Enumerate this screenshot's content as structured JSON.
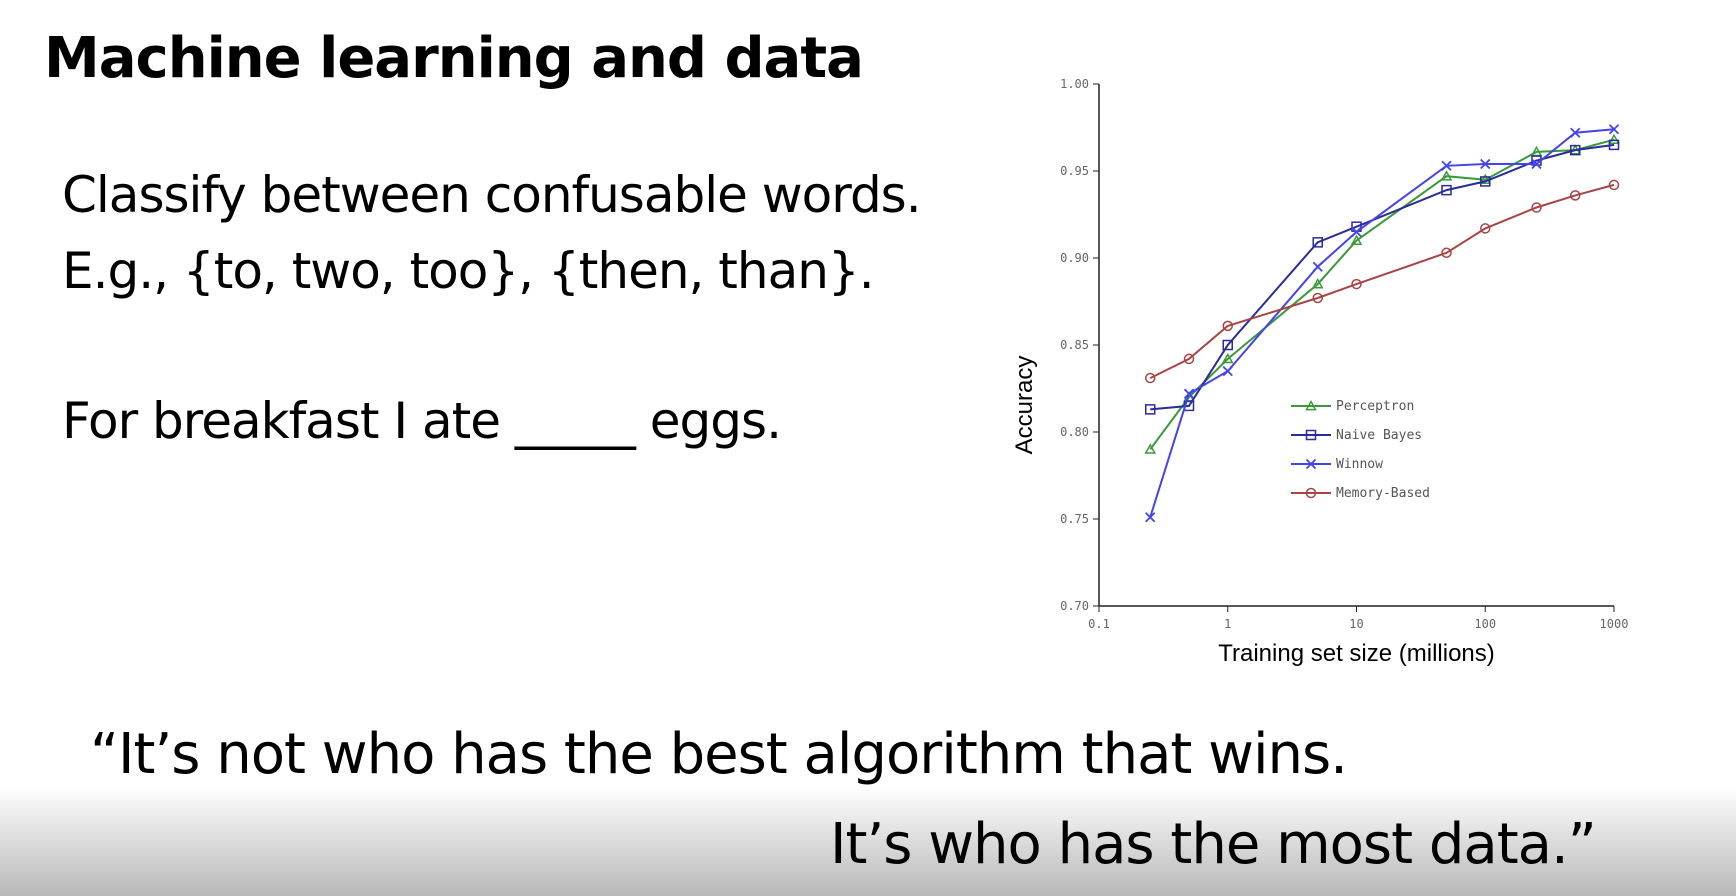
{
  "slide": {
    "title": "Machine learning and data",
    "line1": "Classify between confusable words.",
    "line2": "E.g., {to, two, too}, {then, than}.",
    "line3": "For breakfast I ate _____ eggs.",
    "quote_line1": "“It’s not who has the best algorithm that wins.",
    "quote_line2": "It’s who has the most data.”"
  },
  "chart_data": {
    "type": "line",
    "xlabel": "Training set size (millions)",
    "ylabel": "Accuracy",
    "xscale": "log",
    "xlim": [
      0.1,
      1000
    ],
    "ylim": [
      0.7,
      1.0
    ],
    "x_ticks": [
      "0.1",
      "1",
      "10",
      "100",
      "1000"
    ],
    "y_ticks": [
      "0.70",
      "0.75",
      "0.80",
      "0.85",
      "0.90",
      "0.95",
      "1.00"
    ],
    "grid": false,
    "legend_position": "bottom-right",
    "series": [
      {
        "name": "Perceptron",
        "color": "#3a9a3a",
        "marker": "triangle",
        "x": [
          0.25,
          0.5,
          1,
          5,
          10,
          50,
          100,
          250,
          500,
          1000
        ],
        "y": [
          0.79,
          0.82,
          0.842,
          0.885,
          0.91,
          0.947,
          0.945,
          0.961,
          0.962,
          0.968
        ]
      },
      {
        "name": "Naive Bayes",
        "color": "#2b2b9a",
        "marker": "square",
        "x": [
          0.25,
          0.5,
          1,
          5,
          10,
          50,
          100,
          250,
          500,
          1000
        ],
        "y": [
          0.813,
          0.815,
          0.85,
          0.909,
          0.918,
          0.939,
          0.944,
          0.956,
          0.962,
          0.965
        ]
      },
      {
        "name": "Winnow",
        "color": "#4444ee",
        "marker": "x",
        "x": [
          0.25,
          0.5,
          1,
          5,
          10,
          50,
          100,
          250,
          500,
          1000
        ],
        "y": [
          0.751,
          0.822,
          0.835,
          0.895,
          0.915,
          0.953,
          0.954,
          0.954,
          0.972,
          0.974
        ]
      },
      {
        "name": "Memory-Based",
        "color": "#a84444",
        "marker": "circle",
        "x": [
          0.25,
          0.5,
          1,
          5,
          10,
          50,
          100,
          250,
          500,
          1000
        ],
        "y": [
          0.831,
          0.842,
          0.861,
          0.877,
          0.885,
          0.903,
          0.917,
          0.929,
          0.936,
          0.942
        ]
      }
    ]
  }
}
